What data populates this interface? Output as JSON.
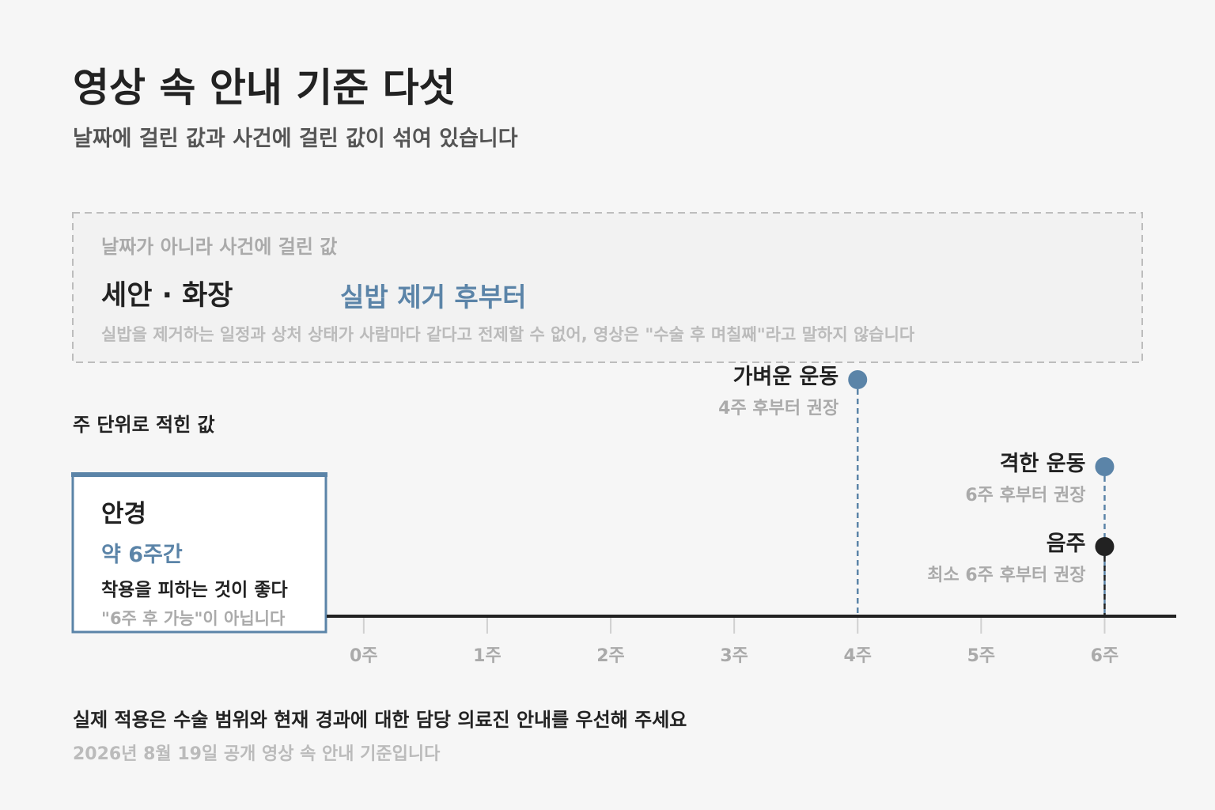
{
  "chart_data": {
    "type": "timeline",
    "title": "영상 속 안내 기준 다섯",
    "subtitle": "날짜에 걸린 값과 사건에 걸린 값이 섞여 있습니다",
    "event_box": {
      "label": "날짜가 아니라 사건에 걸린 값",
      "item": "세안 · 화장",
      "value": "실밥 제거 후부터",
      "note": "실밥을 제거하는 일정과 상처 상태가 사람마다 같다고 전제할 수 없어, 영상은 \"수술 후 며칠째\"라고 말하지 않습니다",
      "color": "#5b84a8"
    },
    "section_label": "주 단위로 적힌 값",
    "card": {
      "item": "안경",
      "value": "약 6주간",
      "text": "착용을 피하는 것이 좋다",
      "note": "\"6주 후 가능\"이 아닙니다",
      "color": "#5b84a8"
    },
    "xlim": [
      -0.3,
      6.58
    ],
    "xticks": [
      {
        "value": 0,
        "label": "0주"
      },
      {
        "value": 1,
        "label": "1주"
      },
      {
        "value": 2,
        "label": "2주"
      },
      {
        "value": 3,
        "label": "3주"
      },
      {
        "value": 4,
        "label": "4주"
      },
      {
        "value": 5,
        "label": "5주"
      },
      {
        "value": 6,
        "label": "6주"
      }
    ],
    "events": [
      {
        "name": "가벼운 운동",
        "note": "4주 후부터 권장",
        "value": 4,
        "color": "#5b84a8"
      },
      {
        "name": "격한 운동",
        "note": "6주 후부터 권장",
        "value": 6,
        "color": "#5b84a8"
      },
      {
        "name": "음주",
        "note": "최소 6주 후부터 권장",
        "value": 6,
        "color": "#222222"
      }
    ],
    "footer": "실제 적용은 수술 범위와 현재 경과에 대한 담당 의료진 안내를 우선해 주세요",
    "source": "2026년 8월 19일 공개 영상 속 안내 기준입니다"
  }
}
